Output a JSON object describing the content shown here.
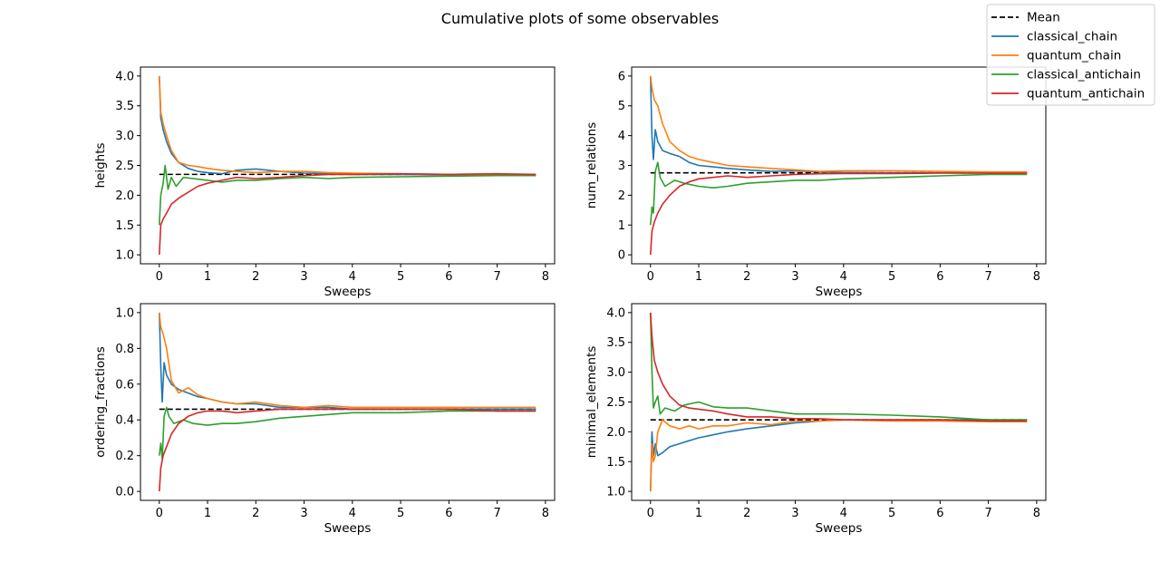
{
  "figure": {
    "title": "Cumulative plots of some observables"
  },
  "legend": {
    "placement": "upper-right",
    "entries": [
      {
        "label": "Mean",
        "color": "#000000",
        "dashed": true
      },
      {
        "label": "classical_chain",
        "color": "#1f77b4"
      },
      {
        "label": "quantum_chain",
        "color": "#ff7f0e"
      },
      {
        "label": "classical_antichain",
        "color": "#2ca02c"
      },
      {
        "label": "quantum_antichain",
        "color": "#d62728"
      }
    ]
  },
  "chart_data": [
    {
      "type": "line",
      "xlabel": "Sweeps",
      "ylabel": "heights",
      "xlim": [
        -0.39,
        8.19
      ],
      "ylim": [
        0.85,
        4.15
      ],
      "xticks": [
        0,
        1,
        2,
        3,
        4,
        5,
        6,
        7,
        8
      ],
      "xtick_labels": [
        "0",
        "1",
        "2",
        "3",
        "4",
        "5",
        "6",
        "7",
        "8"
      ],
      "yticks": [
        1.0,
        1.5,
        2.0,
        2.5,
        3.0,
        3.5,
        4.0
      ],
      "ytick_labels": [
        "1.0",
        "1.5",
        "2.0",
        "2.5",
        "3.0",
        "3.5",
        "4.0"
      ],
      "mean": {
        "value": 2.35,
        "x": [
          0,
          7.8
        ]
      },
      "series": [
        {
          "name": "classical_chain",
          "x": [
            0,
            0.03,
            0.08,
            0.15,
            0.25,
            0.4,
            0.6,
            0.8,
            1.0,
            1.3,
            1.6,
            2.0,
            2.5,
            3.0,
            3.5,
            4.0,
            5.0,
            6.0,
            7.0,
            7.8
          ],
          "y": [
            4.0,
            3.3,
            3.1,
            2.9,
            2.7,
            2.55,
            2.45,
            2.4,
            2.38,
            2.36,
            2.42,
            2.44,
            2.4,
            2.37,
            2.36,
            2.35,
            2.35,
            2.34,
            2.33,
            2.33
          ]
        },
        {
          "name": "quantum_chain",
          "x": [
            0,
            0.03,
            0.08,
            0.15,
            0.25,
            0.4,
            0.6,
            0.8,
            1.0,
            1.3,
            1.6,
            2.0,
            2.5,
            3.0,
            3.5,
            4.0,
            5.0,
            6.0,
            7.0,
            7.8
          ],
          "y": [
            4.0,
            3.4,
            3.2,
            3.0,
            2.75,
            2.55,
            2.5,
            2.48,
            2.45,
            2.42,
            2.4,
            2.38,
            2.4,
            2.4,
            2.38,
            2.37,
            2.36,
            2.35,
            2.35,
            2.35
          ]
        },
        {
          "name": "classical_antichain",
          "x": [
            0,
            0.03,
            0.08,
            0.12,
            0.18,
            0.25,
            0.35,
            0.5,
            0.7,
            1.0,
            1.3,
            1.6,
            2.0,
            2.5,
            3.0,
            3.5,
            4.0,
            5.0,
            6.0,
            7.0,
            7.8
          ],
          "y": [
            1.5,
            2.0,
            2.2,
            2.5,
            2.1,
            2.3,
            2.15,
            2.3,
            2.28,
            2.25,
            2.22,
            2.25,
            2.25,
            2.28,
            2.3,
            2.28,
            2.3,
            2.31,
            2.32,
            2.33,
            2.33
          ]
        },
        {
          "name": "quantum_antichain",
          "x": [
            0,
            0.03,
            0.08,
            0.15,
            0.25,
            0.4,
            0.6,
            0.8,
            1.0,
            1.3,
            1.6,
            2.0,
            2.5,
            3.0,
            3.5,
            4.0,
            5.0,
            6.0,
            7.0,
            7.8
          ],
          "y": [
            1.0,
            1.5,
            1.6,
            1.7,
            1.85,
            1.95,
            2.05,
            2.15,
            2.2,
            2.25,
            2.3,
            2.28,
            2.3,
            2.33,
            2.35,
            2.35,
            2.36,
            2.35,
            2.36,
            2.35
          ]
        }
      ]
    },
    {
      "type": "line",
      "xlabel": "Sweeps",
      "ylabel": "num_relations",
      "xlim": [
        -0.39,
        8.19
      ],
      "ylim": [
        -0.3,
        6.3
      ],
      "xticks": [
        0,
        1,
        2,
        3,
        4,
        5,
        6,
        7,
        8
      ],
      "xtick_labels": [
        "0",
        "1",
        "2",
        "3",
        "4",
        "5",
        "6",
        "7",
        "8"
      ],
      "yticks": [
        0,
        1,
        2,
        3,
        4,
        5,
        6
      ],
      "ytick_labels": [
        "0",
        "1",
        "2",
        "3",
        "4",
        "5",
        "6"
      ],
      "mean": {
        "value": 2.75,
        "x": [
          0,
          7.8
        ]
      },
      "series": [
        {
          "name": "classical_chain",
          "x": [
            0,
            0.03,
            0.06,
            0.1,
            0.15,
            0.25,
            0.4,
            0.6,
            0.8,
            1.0,
            1.3,
            1.6,
            2.0,
            2.5,
            3.0,
            3.5,
            4.0,
            5.0,
            6.0,
            7.0,
            7.8
          ],
          "y": [
            6.0,
            4.0,
            3.2,
            4.2,
            3.8,
            3.5,
            3.4,
            3.3,
            3.1,
            3.0,
            2.95,
            2.9,
            2.85,
            2.8,
            2.82,
            2.78,
            2.76,
            2.75,
            2.75,
            2.74,
            2.74
          ]
        },
        {
          "name": "quantum_chain",
          "x": [
            0,
            0.03,
            0.08,
            0.15,
            0.25,
            0.4,
            0.6,
            0.8,
            1.0,
            1.3,
            1.6,
            2.0,
            2.5,
            3.0,
            3.5,
            4.0,
            5.0,
            6.0,
            7.0,
            7.8
          ],
          "y": [
            6.0,
            5.6,
            5.2,
            5.0,
            4.4,
            3.8,
            3.5,
            3.3,
            3.2,
            3.1,
            3.0,
            2.95,
            2.9,
            2.85,
            2.8,
            2.82,
            2.82,
            2.8,
            2.78,
            2.78
          ]
        },
        {
          "name": "classical_antichain",
          "x": [
            0,
            0.03,
            0.06,
            0.1,
            0.15,
            0.2,
            0.3,
            0.5,
            0.7,
            1.0,
            1.3,
            1.6,
            2.0,
            2.5,
            3.0,
            3.5,
            4.0,
            5.0,
            6.0,
            7.0,
            7.8
          ],
          "y": [
            1.0,
            1.6,
            1.4,
            2.8,
            3.1,
            2.6,
            2.3,
            2.5,
            2.4,
            2.3,
            2.25,
            2.3,
            2.4,
            2.45,
            2.5,
            2.5,
            2.55,
            2.6,
            2.65,
            2.7,
            2.7
          ]
        },
        {
          "name": "quantum_antichain",
          "x": [
            0,
            0.03,
            0.08,
            0.15,
            0.25,
            0.4,
            0.6,
            0.8,
            1.0,
            1.3,
            1.6,
            2.0,
            2.5,
            3.0,
            3.5,
            4.0,
            5.0,
            6.0,
            7.0,
            7.8
          ],
          "y": [
            0,
            0.8,
            1.1,
            1.4,
            1.7,
            2.0,
            2.3,
            2.45,
            2.55,
            2.6,
            2.65,
            2.6,
            2.65,
            2.7,
            2.72,
            2.73,
            2.73,
            2.74,
            2.74,
            2.74
          ]
        }
      ]
    },
    {
      "type": "line",
      "xlabel": "Sweeps",
      "ylabel": "ordering_fractions",
      "xlim": [
        -0.39,
        8.19
      ],
      "ylim": [
        -0.05,
        1.05
      ],
      "xticks": [
        0,
        1,
        2,
        3,
        4,
        5,
        6,
        7,
        8
      ],
      "xtick_labels": [
        "0",
        "1",
        "2",
        "3",
        "4",
        "5",
        "6",
        "7",
        "8"
      ],
      "yticks": [
        0.0,
        0.2,
        0.4,
        0.6,
        0.8,
        1.0
      ],
      "ytick_labels": [
        "0.0",
        "0.2",
        "0.4",
        "0.6",
        "0.8",
        "1.0"
      ],
      "mean": {
        "value": 0.46,
        "x": [
          0,
          7.8
        ]
      },
      "series": [
        {
          "name": "classical_chain",
          "x": [
            0,
            0.03,
            0.06,
            0.1,
            0.15,
            0.25,
            0.4,
            0.6,
            0.8,
            1.0,
            1.3,
            1.6,
            2.0,
            2.5,
            3.0,
            3.5,
            4.0,
            5.0,
            6.0,
            7.0,
            7.8
          ],
          "y": [
            1.0,
            0.7,
            0.5,
            0.72,
            0.65,
            0.6,
            0.57,
            0.55,
            0.53,
            0.52,
            0.5,
            0.49,
            0.49,
            0.47,
            0.47,
            0.47,
            0.46,
            0.46,
            0.46,
            0.46,
            0.46
          ]
        },
        {
          "name": "quantum_chain",
          "x": [
            0,
            0.03,
            0.08,
            0.15,
            0.25,
            0.4,
            0.6,
            0.8,
            1.0,
            1.3,
            1.6,
            2.0,
            2.5,
            3.0,
            3.5,
            4.0,
            5.0,
            6.0,
            7.0,
            7.8
          ],
          "y": [
            1.0,
            0.92,
            0.88,
            0.8,
            0.62,
            0.55,
            0.58,
            0.54,
            0.52,
            0.5,
            0.49,
            0.5,
            0.48,
            0.47,
            0.48,
            0.47,
            0.47,
            0.47,
            0.47,
            0.47
          ]
        },
        {
          "name": "classical_antichain",
          "x": [
            0,
            0.03,
            0.06,
            0.1,
            0.15,
            0.2,
            0.3,
            0.5,
            0.7,
            1.0,
            1.3,
            1.6,
            2.0,
            2.5,
            3.0,
            3.5,
            4.0,
            5.0,
            6.0,
            7.0,
            7.8
          ],
          "y": [
            0.2,
            0.27,
            0.18,
            0.42,
            0.47,
            0.42,
            0.38,
            0.4,
            0.38,
            0.37,
            0.38,
            0.38,
            0.39,
            0.41,
            0.42,
            0.43,
            0.44,
            0.44,
            0.45,
            0.45,
            0.45
          ]
        },
        {
          "name": "quantum_antichain",
          "x": [
            0,
            0.03,
            0.08,
            0.15,
            0.25,
            0.4,
            0.6,
            0.8,
            1.0,
            1.3,
            1.6,
            2.0,
            2.5,
            3.0,
            3.5,
            4.0,
            5.0,
            6.0,
            7.0,
            7.8
          ],
          "y": [
            0.0,
            0.13,
            0.2,
            0.25,
            0.32,
            0.38,
            0.42,
            0.44,
            0.45,
            0.45,
            0.44,
            0.45,
            0.46,
            0.46,
            0.46,
            0.46,
            0.46,
            0.46,
            0.45,
            0.45
          ]
        }
      ]
    },
    {
      "type": "line",
      "xlabel": "Sweeps",
      "ylabel": "minimal_elements",
      "xlim": [
        -0.39,
        8.19
      ],
      "ylim": [
        0.85,
        4.15
      ],
      "xticks": [
        0,
        1,
        2,
        3,
        4,
        5,
        6,
        7,
        8
      ],
      "xtick_labels": [
        "0",
        "1",
        "2",
        "3",
        "4",
        "5",
        "6",
        "7",
        "8"
      ],
      "yticks": [
        1.0,
        1.5,
        2.0,
        2.5,
        3.0,
        3.5,
        4.0
      ],
      "ytick_labels": [
        "1.0",
        "1.5",
        "2.0",
        "2.5",
        "3.0",
        "3.5",
        "4.0"
      ],
      "mean": {
        "value": 2.2,
        "x": [
          0,
          7.8
        ]
      },
      "series": [
        {
          "name": "classical_chain",
          "x": [
            0,
            0.03,
            0.06,
            0.1,
            0.15,
            0.25,
            0.4,
            0.6,
            0.8,
            1.0,
            1.3,
            1.6,
            2.0,
            2.5,
            3.0,
            3.5,
            4.0,
            5.0,
            6.0,
            7.0,
            7.8
          ],
          "y": [
            1.0,
            2.0,
            1.6,
            1.8,
            1.6,
            1.65,
            1.75,
            1.8,
            1.85,
            1.9,
            1.95,
            2.0,
            2.05,
            2.1,
            2.15,
            2.18,
            2.2,
            2.2,
            2.2,
            2.2,
            2.2
          ]
        },
        {
          "name": "quantum_chain",
          "x": [
            0,
            0.03,
            0.06,
            0.1,
            0.15,
            0.25,
            0.4,
            0.6,
            0.8,
            1.0,
            1.3,
            1.6,
            2.0,
            2.5,
            3.0,
            3.5,
            4.0,
            5.0,
            6.0,
            7.0,
            7.8
          ],
          "y": [
            1.0,
            1.8,
            1.5,
            1.6,
            2.0,
            2.2,
            2.1,
            2.05,
            2.1,
            2.05,
            2.1,
            2.1,
            2.15,
            2.12,
            2.18,
            2.18,
            2.2,
            2.18,
            2.18,
            2.17,
            2.17
          ]
        },
        {
          "name": "classical_antichain",
          "x": [
            0,
            0.03,
            0.06,
            0.1,
            0.15,
            0.2,
            0.3,
            0.5,
            0.7,
            1.0,
            1.3,
            1.6,
            2.0,
            2.5,
            3.0,
            3.5,
            4.0,
            5.0,
            6.0,
            7.0,
            7.8
          ],
          "y": [
            4.0,
            3.0,
            2.4,
            2.5,
            2.6,
            2.3,
            2.4,
            2.35,
            2.45,
            2.5,
            2.42,
            2.4,
            2.4,
            2.35,
            2.3,
            2.3,
            2.3,
            2.28,
            2.25,
            2.2,
            2.2
          ]
        },
        {
          "name": "quantum_antichain",
          "x": [
            0,
            0.03,
            0.08,
            0.15,
            0.25,
            0.4,
            0.6,
            0.8,
            1.0,
            1.3,
            1.6,
            2.0,
            2.5,
            3.0,
            3.5,
            4.0,
            5.0,
            6.0,
            7.0,
            7.8
          ],
          "y": [
            4.0,
            3.6,
            3.2,
            3.0,
            2.8,
            2.6,
            2.45,
            2.4,
            2.38,
            2.35,
            2.3,
            2.25,
            2.25,
            2.22,
            2.22,
            2.2,
            2.2,
            2.2,
            2.18,
            2.18
          ]
        }
      ]
    }
  ]
}
